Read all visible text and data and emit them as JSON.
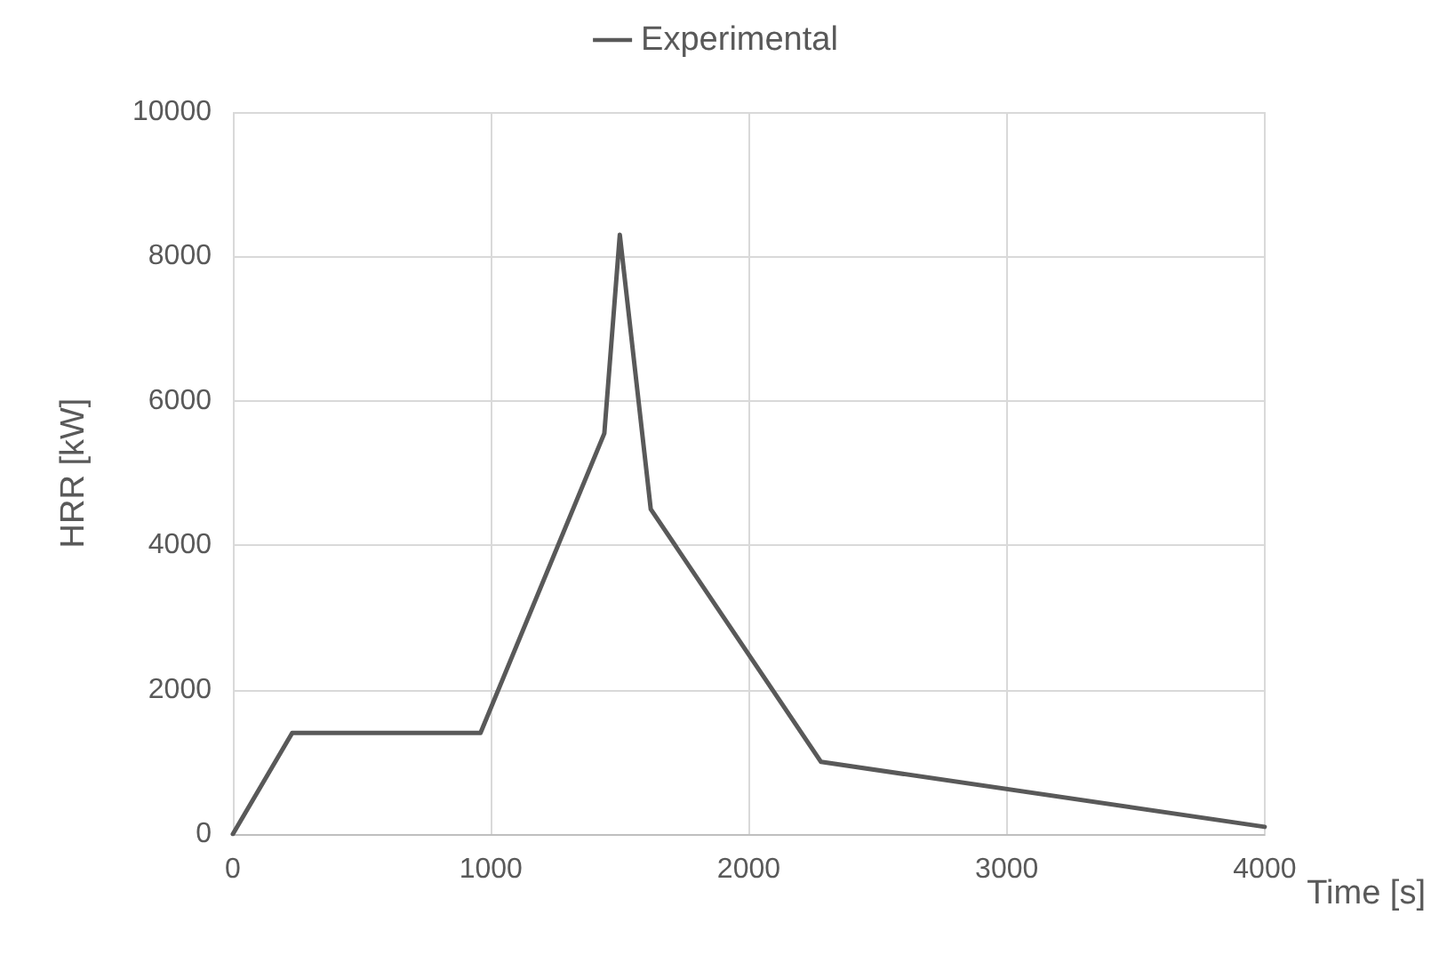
{
  "chart_data": {
    "type": "line",
    "xlabel": "Time [s]",
    "ylabel": "HRR [kW]",
    "series": [
      {
        "name": "Experimental",
        "color": "#595959",
        "x": [
          0,
          230,
          960,
          1440,
          1500,
          1620,
          2280,
          4000
        ],
        "values": [
          0,
          1400,
          1400,
          5550,
          8300,
          4500,
          1000,
          100
        ]
      }
    ],
    "xlim": [
      0,
      4000
    ],
    "xticks": [
      0,
      1000,
      2000,
      3000,
      4000
    ],
    "ylim": [
      0,
      10000
    ],
    "yticks": [
      0,
      2000,
      4000,
      6000,
      8000,
      10000
    ],
    "grid": true,
    "legend": "top",
    "marker": "none",
    "line_style": "solid"
  }
}
